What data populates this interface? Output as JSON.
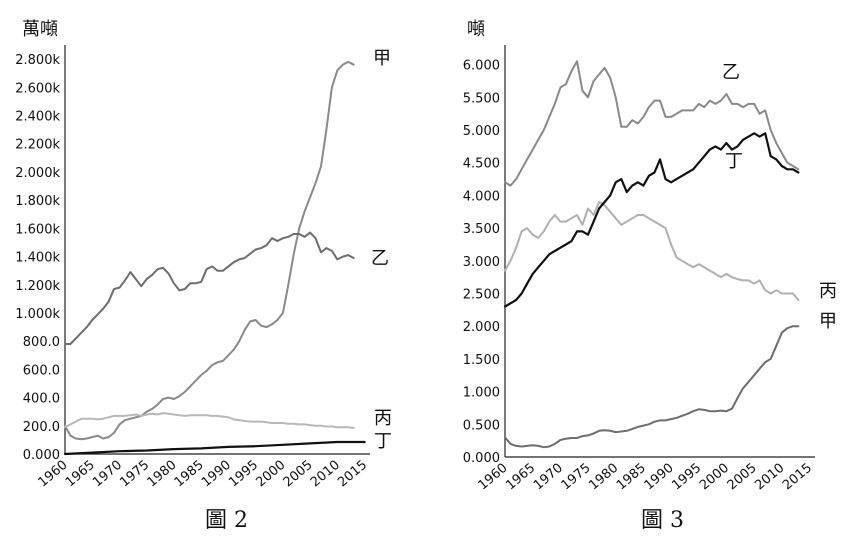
{
  "chart_data": [
    {
      "type": "line",
      "caption": "圖 2",
      "ylabel": "萬噸",
      "ylim": [
        0,
        2900
      ],
      "xlim": [
        1960,
        2016
      ],
      "x_ticks": [
        "1960",
        "1965",
        "1970",
        "1975",
        "1980",
        "1985",
        "1990",
        "1995",
        "2000",
        "2005",
        "2010",
        "2015"
      ],
      "y_ticks": [
        {
          "v": 0,
          "label": "0.000"
        },
        {
          "v": 200,
          "label": "200.0"
        },
        {
          "v": 400,
          "label": "400.0"
        },
        {
          "v": 600,
          "label": "600.0"
        },
        {
          "v": 800,
          "label": "800.0"
        },
        {
          "v": 1000,
          "label": "1.000k"
        },
        {
          "v": 1200,
          "label": "1.200k"
        },
        {
          "v": 1400,
          "label": "1.400k"
        },
        {
          "v": 1600,
          "label": "1.600k"
        },
        {
          "v": 1800,
          "label": "1.800k"
        },
        {
          "v": 2000,
          "label": "2.000k"
        },
        {
          "v": 2200,
          "label": "2.200k"
        },
        {
          "v": 2400,
          "label": "2.400k"
        },
        {
          "v": 2600,
          "label": "2.600k"
        },
        {
          "v": 2800,
          "label": "2.800k"
        }
      ],
      "series": [
        {
          "name": "甲",
          "color": "#8a8a8a",
          "x": [
            1960,
            1961,
            1962,
            1963,
            1964,
            1965,
            1966,
            1967,
            1968,
            1969,
            1970,
            1971,
            1972,
            1973,
            1974,
            1975,
            1976,
            1977,
            1978,
            1979,
            1980,
            1981,
            1982,
            1983,
            1984,
            1985,
            1986,
            1987,
            1988,
            1989,
            1990,
            1991,
            1992,
            1993,
            1994,
            1995,
            1996,
            1997,
            1998,
            1999,
            2000,
            2001,
            2002,
            2003,
            2004,
            2005,
            2006,
            2007,
            2008,
            2009,
            2010,
            2011,
            2012,
            2013,
            2014,
            2015
          ],
          "y": [
            200,
            130,
            110,
            105,
            110,
            120,
            130,
            110,
            120,
            150,
            210,
            240,
            250,
            260,
            270,
            300,
            320,
            350,
            390,
            400,
            390,
            410,
            440,
            480,
            520,
            560,
            590,
            630,
            650,
            660,
            700,
            740,
            800,
            880,
            940,
            950,
            910,
            900,
            920,
            950,
            1000,
            1200,
            1420,
            1600,
            1720,
            1820,
            1920,
            2040,
            2300,
            2600,
            2720,
            2760,
            2780,
            2760,
            null,
            null
          ]
        },
        {
          "name": "乙",
          "color": "#6e6e6e",
          "x": [
            1960,
            1961,
            1962,
            1963,
            1964,
            1965,
            1966,
            1967,
            1968,
            1969,
            1970,
            1971,
            1972,
            1973,
            1974,
            1975,
            1976,
            1977,
            1978,
            1979,
            1980,
            1981,
            1982,
            1983,
            1984,
            1985,
            1986,
            1987,
            1988,
            1989,
            1990,
            1991,
            1992,
            1993,
            1994,
            1995,
            1996,
            1997,
            1998,
            1999,
            2000,
            2001,
            2002,
            2003,
            2004,
            2005,
            2006,
            2007,
            2008,
            2009,
            2010,
            2011,
            2012,
            2013,
            2014,
            2015
          ],
          "y": [
            780,
            780,
            820,
            860,
            900,
            950,
            990,
            1030,
            1080,
            1170,
            1180,
            1230,
            1290,
            1240,
            1190,
            1240,
            1270,
            1310,
            1320,
            1280,
            1210,
            1160,
            1170,
            1210,
            1210,
            1220,
            1310,
            1330,
            1300,
            1300,
            1330,
            1360,
            1380,
            1390,
            1420,
            1450,
            1460,
            1480,
            1530,
            1510,
            1530,
            1540,
            1560,
            1560,
            1540,
            1570,
            1530,
            1430,
            1460,
            1440,
            1380,
            1400,
            1410,
            1390,
            null,
            null
          ]
        },
        {
          "name": "丙",
          "color": "#b8b8b8",
          "x": [
            1960,
            1961,
            1962,
            1963,
            1964,
            1965,
            1966,
            1967,
            1968,
            1969,
            1970,
            1971,
            1972,
            1973,
            1974,
            1975,
            1976,
            1977,
            1978,
            1979,
            1980,
            1981,
            1982,
            1983,
            1984,
            1985,
            1986,
            1987,
            1988,
            1989,
            1990,
            1991,
            1992,
            1993,
            1994,
            1995,
            1996,
            1997,
            1998,
            1999,
            2000,
            2001,
            2002,
            2003,
            2004,
            2005,
            2006,
            2007,
            2008,
            2009,
            2010,
            2011,
            2012,
            2013,
            2014,
            2015
          ],
          "y": [
            190,
            210,
            230,
            250,
            250,
            250,
            245,
            250,
            260,
            270,
            270,
            270,
            275,
            280,
            270,
            280,
            285,
            280,
            290,
            285,
            280,
            275,
            270,
            275,
            275,
            275,
            275,
            270,
            270,
            265,
            260,
            245,
            240,
            235,
            230,
            230,
            230,
            225,
            220,
            220,
            220,
            215,
            215,
            210,
            210,
            205,
            200,
            200,
            195,
            195,
            190,
            190,
            190,
            185,
            null,
            null
          ]
        },
        {
          "name": "丁",
          "color": "#111111",
          "x": [
            1960,
            1965,
            1970,
            1975,
            1980,
            1985,
            1990,
            1995,
            2000,
            2005,
            2010,
            2015
          ],
          "y": [
            0,
            10,
            20,
            25,
            35,
            40,
            50,
            55,
            65,
            75,
            85,
            85
          ]
        }
      ]
    },
    {
      "type": "line",
      "caption": "圖 3",
      "ylabel": "噸",
      "ylim": [
        0,
        6.3
      ],
      "xlim": [
        1960,
        2016
      ],
      "x_ticks": [
        "1960",
        "1965",
        "1970",
        "1975",
        "1980",
        "1985",
        "1990",
        "1995",
        "2000",
        "2005",
        "2010",
        "2015"
      ],
      "y_ticks": [
        {
          "v": 0,
          "label": "0.000"
        },
        {
          "v": 0.5,
          "label": "0.500"
        },
        {
          "v": 1,
          "label": "1.000"
        },
        {
          "v": 1.5,
          "label": "1.500"
        },
        {
          "v": 2,
          "label": "2.000"
        },
        {
          "v": 2.5,
          "label": "2.500"
        },
        {
          "v": 3,
          "label": "3.000"
        },
        {
          "v": 3.5,
          "label": "3.500"
        },
        {
          "v": 4,
          "label": "4.000"
        },
        {
          "v": 4.5,
          "label": "4.500"
        },
        {
          "v": 5,
          "label": "5.000"
        },
        {
          "v": 5.5,
          "label": "5.500"
        },
        {
          "v": 6,
          "label": "6.000"
        }
      ],
      "series": [
        {
          "name": "甲",
          "color": "#6e6e6e",
          "x": [
            1960,
            1961,
            1962,
            1963,
            1964,
            1965,
            1966,
            1967,
            1968,
            1969,
            1970,
            1971,
            1972,
            1973,
            1974,
            1975,
            1976,
            1977,
            1978,
            1979,
            1980,
            1981,
            1982,
            1983,
            1984,
            1985,
            1986,
            1987,
            1988,
            1989,
            1990,
            1991,
            1992,
            1993,
            1994,
            1995,
            1996,
            1997,
            1998,
            1999,
            2000,
            2001,
            2002,
            2003,
            2004,
            2005,
            2006,
            2007,
            2008,
            2009,
            2010,
            2011,
            2012,
            2013,
            2014,
            2015
          ],
          "y": [
            0.3,
            0.2,
            0.17,
            0.16,
            0.17,
            0.18,
            0.17,
            0.15,
            0.16,
            0.2,
            0.26,
            0.28,
            0.29,
            0.29,
            0.32,
            0.33,
            0.36,
            0.4,
            0.41,
            0.4,
            0.38,
            0.39,
            0.4,
            0.43,
            0.46,
            0.48,
            0.5,
            0.54,
            0.56,
            0.56,
            0.58,
            0.6,
            0.63,
            0.66,
            0.7,
            0.73,
            0.72,
            0.7,
            0.7,
            0.71,
            0.7,
            0.74,
            0.9,
            1.05,
            1.15,
            1.25,
            1.35,
            1.45,
            1.5,
            1.7,
            1.9,
            1.97,
            2.0,
            2.0,
            null,
            null
          ]
        },
        {
          "name": "乙",
          "color": "#8a8a8a",
          "x": [
            1960,
            1961,
            1962,
            1963,
            1964,
            1965,
            1966,
            1967,
            1968,
            1969,
            1970,
            1971,
            1972,
            1973,
            1974,
            1975,
            1976,
            1977,
            1978,
            1979,
            1980,
            1981,
            1982,
            1983,
            1984,
            1985,
            1986,
            1987,
            1988,
            1989,
            1990,
            1991,
            1992,
            1993,
            1994,
            1995,
            1996,
            1997,
            1998,
            1999,
            2000,
            2001,
            2002,
            2003,
            2004,
            2005,
            2006,
            2007,
            2008,
            2009,
            2010,
            2011,
            2012,
            2013,
            2014,
            2015
          ],
          "y": [
            4.2,
            4.15,
            4.25,
            4.4,
            4.55,
            4.7,
            4.85,
            5.0,
            5.2,
            5.4,
            5.65,
            5.7,
            5.9,
            6.05,
            5.6,
            5.5,
            5.75,
            5.85,
            5.95,
            5.8,
            5.5,
            5.05,
            5.05,
            5.15,
            5.1,
            5.2,
            5.35,
            5.45,
            5.45,
            5.2,
            5.2,
            5.25,
            5.3,
            5.3,
            5.3,
            5.4,
            5.35,
            5.45,
            5.4,
            5.45,
            5.55,
            5.4,
            5.4,
            5.35,
            5.4,
            5.4,
            5.25,
            5.3,
            5.0,
            4.8,
            4.65,
            4.5,
            4.45,
            4.4,
            null,
            null
          ]
        },
        {
          "name": "丙",
          "color": "#b0b0b0",
          "x": [
            1960,
            1961,
            1962,
            1963,
            1964,
            1965,
            1966,
            1967,
            1968,
            1969,
            1970,
            1971,
            1972,
            1973,
            1974,
            1975,
            1976,
            1977,
            1978,
            1979,
            1980,
            1981,
            1982,
            1983,
            1984,
            1985,
            1986,
            1987,
            1988,
            1989,
            1990,
            1991,
            1992,
            1993,
            1994,
            1995,
            1996,
            1997,
            1998,
            1999,
            2000,
            2001,
            2002,
            2003,
            2004,
            2005,
            2006,
            2007,
            2008,
            2009,
            2010,
            2011,
            2012,
            2013,
            2014,
            2015
          ],
          "y": [
            2.85,
            3.0,
            3.2,
            3.45,
            3.5,
            3.4,
            3.35,
            3.45,
            3.6,
            3.7,
            3.6,
            3.6,
            3.65,
            3.7,
            3.55,
            3.8,
            3.7,
            3.9,
            3.85,
            3.75,
            3.65,
            3.55,
            3.6,
            3.65,
            3.7,
            3.7,
            3.65,
            3.6,
            3.55,
            3.5,
            3.25,
            3.05,
            3.0,
            2.95,
            2.9,
            2.95,
            2.9,
            2.85,
            2.8,
            2.75,
            2.8,
            2.75,
            2.72,
            2.7,
            2.7,
            2.65,
            2.7,
            2.55,
            2.5,
            2.55,
            2.5,
            2.5,
            2.5,
            2.4,
            null,
            null
          ]
        },
        {
          "name": "丁",
          "color": "#111111",
          "x": [
            1960,
            1961,
            1962,
            1963,
            1964,
            1965,
            1966,
            1967,
            1968,
            1969,
            1970,
            1971,
            1972,
            1973,
            1974,
            1975,
            1976,
            1977,
            1978,
            1979,
            1980,
            1981,
            1982,
            1983,
            1984,
            1985,
            1986,
            1987,
            1988,
            1989,
            1990,
            1991,
            1992,
            1993,
            1994,
            1995,
            1996,
            1997,
            1998,
            1999,
            2000,
            2001,
            2002,
            2003,
            2004,
            2005,
            2006,
            2007,
            2008,
            2009,
            2010,
            2011,
            2012,
            2013,
            2014,
            2015
          ],
          "y": [
            2.3,
            2.35,
            2.4,
            2.5,
            2.65,
            2.8,
            2.9,
            3.0,
            3.1,
            3.15,
            3.2,
            3.25,
            3.3,
            3.45,
            3.45,
            3.4,
            3.6,
            3.8,
            3.9,
            4.0,
            4.2,
            4.25,
            4.05,
            4.15,
            4.2,
            4.15,
            4.3,
            4.35,
            4.55,
            4.25,
            4.2,
            4.25,
            4.3,
            4.35,
            4.4,
            4.5,
            4.6,
            4.7,
            4.75,
            4.7,
            4.8,
            4.7,
            4.75,
            4.85,
            4.9,
            4.95,
            4.9,
            4.95,
            4.6,
            4.55,
            4.45,
            4.4,
            4.4,
            4.35,
            null,
            null
          ]
        }
      ]
    }
  ]
}
